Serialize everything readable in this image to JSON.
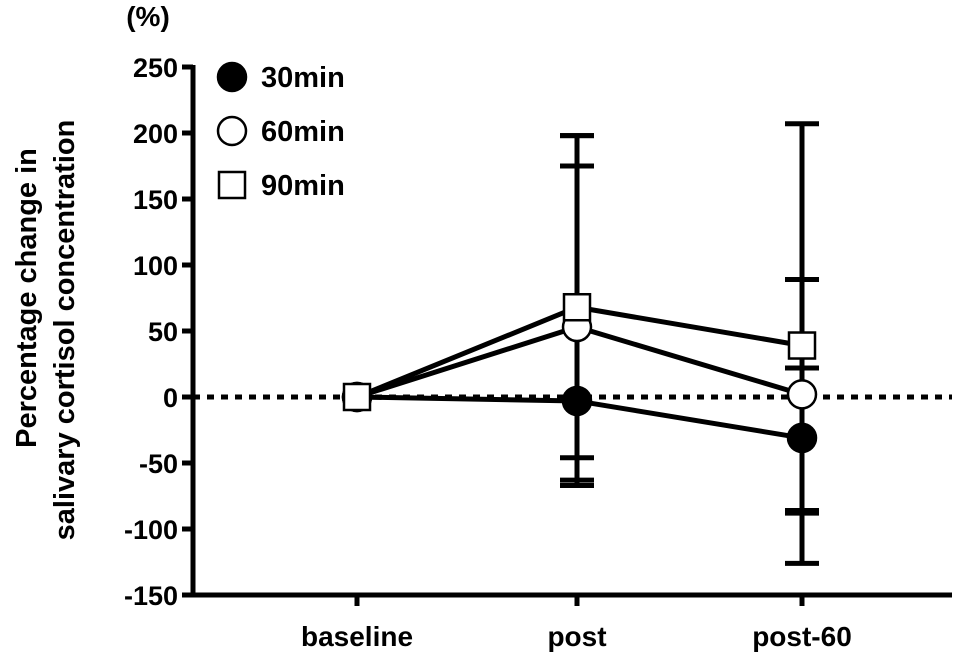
{
  "chart_data": {
    "type": "line",
    "unit_label": "(%)",
    "ylabel_lines": [
      "Percentage change in",
      "salivary cortisol concentration"
    ],
    "xlabel": "",
    "categories": [
      "baseline",
      "post",
      "post-60"
    ],
    "ylim": [
      -150,
      250
    ],
    "yticks": [
      250,
      200,
      150,
      100,
      50,
      0,
      -50,
      -100,
      -150
    ],
    "reference_line": {
      "y": 0,
      "style": "dotted"
    },
    "legend_position": "top-left",
    "series": [
      {
        "name": "30min",
        "marker": "filled-circle",
        "values": [
          0,
          -3,
          -31
        ],
        "error_upper": [
          0,
          175,
          22
        ],
        "error_lower": [
          0,
          -67,
          -126
        ]
      },
      {
        "name": "60min",
        "marker": "open-circle",
        "values": [
          0,
          53,
          2
        ],
        "error_upper": [
          0,
          198,
          89
        ],
        "error_lower": [
          0,
          -63,
          -86
        ]
      },
      {
        "name": "90min",
        "marker": "open-square",
        "values": [
          0,
          68,
          39
        ],
        "error_upper": [
          0,
          198,
          207
        ],
        "error_lower": [
          0,
          -46,
          -88
        ]
      }
    ],
    "colors": {
      "line": "#000000",
      "marker_fill_dark": "#000000",
      "marker_fill_light": "#ffffff"
    }
  }
}
